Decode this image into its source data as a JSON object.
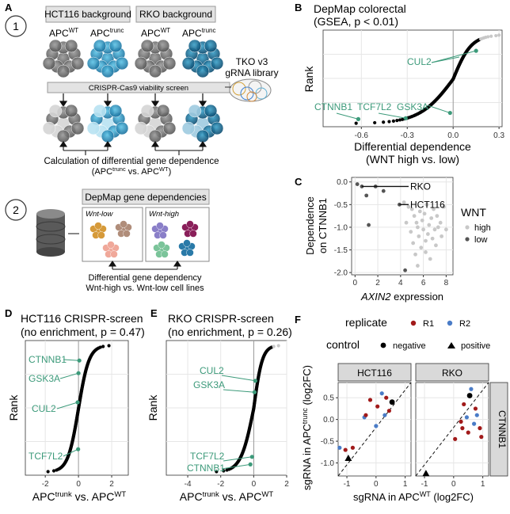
{
  "colors": {
    "teal": "#3c9a7a",
    "dep_high": "#c8c8c8",
    "dep_low": "#555555",
    "rank_points": "#000000",
    "rank_faint": "#c8c8c8",
    "r1": "#a11a1a",
    "r2": "#4a7cc7",
    "strip_bg": "#d9d9d9",
    "panel_bg": "#ffffff",
    "grid": "#e6e6e6"
  },
  "panel_labels": {
    "A": "A",
    "B": "B",
    "C": "C",
    "D": "D",
    "E": "E",
    "F": "F"
  },
  "panelA": {
    "step1": "1",
    "step2": "2",
    "hct_header": "HCT116 background",
    "rko_header": "RKO background",
    "apc_prefix": "APC",
    "sup_wt": "WT",
    "sup_trunc": "trunc",
    "screen_label": "CRISPR-Cas9 viability screen",
    "library_line1": "TKO v3",
    "library_line2": "gRNA library",
    "calc_line1": "Calculation of differential gene dependence",
    "calc_line2_open": "(APC",
    "calc_line2_mid": " vs. APC",
    "calc_line2_close": ")",
    "depmap_header": "DepMap gene dependencies",
    "wnt_low": "Wnt-low",
    "wnt_high": "Wnt-high",
    "diff_line1": "Differential gene dependency",
    "diff_line2": "Wnt-high vs. Wnt-low cell lines",
    "icons": [
      "cell-cluster-icon",
      "database-icon",
      "petri-dish-icon",
      "cell-pellet-icon"
    ]
  },
  "chart_data": [
    {
      "id": "B",
      "type": "scatter",
      "title_line1": "DepMap colorectal",
      "title_line2": "(GSEA, p < 0.01)",
      "xlabel_line1": "Differential dependence",
      "xlabel_line2": "(WNT high vs. low)",
      "ylabel": "Rank",
      "xlim": [
        -0.85,
        0.32
      ],
      "x_ticks": [
        -0.6,
        -0.3,
        0.0,
        0.3
      ],
      "x_tick_labels": [
        "-0.6",
        "-0.3",
        "0.0",
        "0.3"
      ],
      "ylim": [
        0,
        1
      ],
      "vline": 0,
      "grid": true,
      "curve_description": "sigmoid rank of all genes",
      "annotations": [
        {
          "label": "CUL2",
          "x": 0.15,
          "y": 0.82
        },
        {
          "label": "CTNNB1",
          "x": -0.62,
          "y": 0.05
        },
        {
          "label": "TCF7L2",
          "x": -0.31,
          "y": 0.06
        },
        {
          "label": "GSK3A",
          "x": -0.02,
          "y": 0.12
        }
      ]
    },
    {
      "id": "C",
      "type": "scatter",
      "xlabel": "AXIN2",
      "xlabel_suffix": " expression",
      "ylabel_line1": "Dependence",
      "ylabel_line2": "on CTNNB1",
      "xlim": [
        -0.3,
        8.6
      ],
      "ylim": [
        -2.05,
        0.1
      ],
      "x_ticks": [
        0,
        2,
        4,
        6,
        8
      ],
      "y_ticks": [
        0.0,
        -0.5,
        -1.0,
        -1.5,
        -2.0
      ],
      "y_tick_labels": [
        "0.0",
        "-0.5",
        "-1.0",
        "-1.5",
        "-2.0"
      ],
      "legend_title": "WNT",
      "legend_position": "right",
      "series": [
        {
          "name": "high",
          "points": [
            [
              4.3,
              -0.45
            ],
            [
              4.5,
              -0.9
            ],
            [
              4.7,
              -0.55
            ],
            [
              4.9,
              -1.1
            ],
            [
              5.0,
              -0.6
            ],
            [
              5.1,
              -1.35
            ],
            [
              5.2,
              -0.75
            ],
            [
              5.3,
              -1.6
            ],
            [
              5.4,
              -0.9
            ],
            [
              5.5,
              -1.0
            ],
            [
              5.6,
              -1.2
            ],
            [
              5.7,
              -0.65
            ],
            [
              5.8,
              -1.45
            ],
            [
              5.9,
              -0.85
            ],
            [
              6.0,
              -1.05
            ],
            [
              6.1,
              -0.7
            ],
            [
              6.2,
              -1.3
            ],
            [
              6.3,
              -0.5
            ],
            [
              6.4,
              -1.15
            ],
            [
              6.5,
              -0.95
            ],
            [
              6.6,
              -1.7
            ],
            [
              6.7,
              -0.8
            ],
            [
              6.8,
              -1.25
            ],
            [
              6.9,
              -0.6
            ],
            [
              7.0,
              -1.05
            ],
            [
              7.1,
              -1.4
            ],
            [
              7.2,
              -0.75
            ],
            [
              7.3,
              -1.0
            ],
            [
              7.5,
              -0.9
            ],
            [
              7.6,
              -1.2
            ],
            [
              7.8,
              -0.55
            ],
            [
              8.0,
              -1.05
            ],
            [
              5.5,
              -1.85
            ],
            [
              6.2,
              -1.55
            ]
          ]
        },
        {
          "name": "low",
          "points": [
            [
              0.2,
              -0.05
            ],
            [
              0.6,
              -0.1
            ],
            [
              1.0,
              -0.3
            ],
            [
              1.2,
              -0.95
            ],
            [
              1.8,
              -0.1
            ],
            [
              2.5,
              -0.2
            ],
            [
              3.9,
              -0.5
            ],
            [
              4.4,
              -1.95
            ]
          ]
        }
      ],
      "annotations": [
        {
          "label": "RKO",
          "x": 0.6,
          "y": -0.1
        },
        {
          "label": "HCT116",
          "x": 3.9,
          "y": -0.5
        }
      ]
    },
    {
      "id": "D",
      "type": "scatter",
      "title_line1": "HCT116 CRISPR-screen",
      "title_line2": "(no enrichment, p = 0.47)",
      "xlabel_base": "APC",
      "xlabel_sup1": "trunk",
      "xlabel_mid": " vs. APC",
      "xlabel_sup2": "WT",
      "ylabel": "Rank",
      "xlim": [
        -3.2,
        3.0
      ],
      "x_ticks": [
        -2,
        0,
        2
      ],
      "x_tick_labels": [
        "-2",
        "0",
        "2"
      ],
      "vline": 0,
      "annotations": [
        {
          "label": "CTNNB1",
          "x": 0.05,
          "y": 0.88
        },
        {
          "label": "GSK3A",
          "x": 0.0,
          "y": 0.78
        },
        {
          "label": "CUL2",
          "x": -0.05,
          "y": 0.55
        },
        {
          "label": "TCF7L2",
          "x": -0.02,
          "y": 0.18
        }
      ]
    },
    {
      "id": "E",
      "type": "scatter",
      "title_line1": "RKO CRISPR-screen",
      "title_line2": "(no enrichment, p = 0.26)",
      "xlabel_base": "APC",
      "xlabel_sup1": "trunk",
      "xlabel_mid": " vs. APC",
      "xlabel_sup2": "WT",
      "ylabel": "Rank",
      "xlim": [
        -5.3,
        2.0
      ],
      "x_ticks": [
        -4,
        -2,
        0,
        2
      ],
      "x_tick_labels": [
        "-4",
        "-2",
        "0",
        "2"
      ],
      "vline": 0,
      "annotations": [
        {
          "label": "CUL2",
          "x": 0.1,
          "y": 0.72
        },
        {
          "label": "GSK3A",
          "x": 0.05,
          "y": 0.63
        },
        {
          "label": "TCF7L2",
          "x": -0.1,
          "y": 0.12
        },
        {
          "label": "CTNNB1",
          "x": -0.2,
          "y": 0.06
        }
      ]
    },
    {
      "id": "F",
      "type": "scatter",
      "legend_replicate_title": "replicate",
      "legend_replicate": [
        "R1",
        "R2"
      ],
      "legend_control_title": "control",
      "legend_control": [
        "negative",
        "positive"
      ],
      "facets": [
        "HCT116",
        "RKO"
      ],
      "row_strip": "CTNNB1",
      "xlabel_base": "sgRNA in APC",
      "xlabel_sup": "WT",
      "xlabel_suffix": " (log2FC)",
      "ylabel_base": "sgRNA in APC",
      "ylabel_sup": "trunc",
      "ylabel_suffix": " (log2FC)",
      "xlim": [
        -1.3,
        1.2
      ],
      "ylim": [
        -1.3,
        0.85
      ],
      "x_ticks": [
        -1,
        0,
        1
      ],
      "y_ticks": [
        0.5,
        0.0,
        -0.5,
        -1.0
      ],
      "y_tick_labels": [
        "0.5",
        "0.0",
        "-0.5",
        "-1.0"
      ],
      "diagonal": "y = x dashed",
      "points": {
        "HCT116": [
          {
            "x": -1.25,
            "y": -0.65,
            "rep": "R2",
            "ctrl": "none"
          },
          {
            "x": -1.05,
            "y": -0.7,
            "rep": "R1",
            "ctrl": "none"
          },
          {
            "x": -0.8,
            "y": -0.65,
            "rep": "R1",
            "ctrl": "none"
          },
          {
            "x": -0.95,
            "y": -0.9,
            "rep": "",
            "ctrl": "positive"
          },
          {
            "x": -0.4,
            "y": 0.05,
            "rep": "R2",
            "ctrl": "none"
          },
          {
            "x": -0.35,
            "y": 0.1,
            "rep": "R1",
            "ctrl": "none"
          },
          {
            "x": -0.2,
            "y": 0.45,
            "rep": "R1",
            "ctrl": "none"
          },
          {
            "x": 0.0,
            "y": -0.15,
            "rep": "R2",
            "ctrl": "none"
          },
          {
            "x": 0.05,
            "y": 0.3,
            "rep": "R1",
            "ctrl": "none"
          },
          {
            "x": 0.2,
            "y": 0.6,
            "rep": "R2",
            "ctrl": "none"
          },
          {
            "x": 0.3,
            "y": 0.1,
            "rep": "R2",
            "ctrl": "none"
          },
          {
            "x": 0.35,
            "y": 0.5,
            "rep": "R1",
            "ctrl": "none"
          },
          {
            "x": 0.45,
            "y": 0.2,
            "rep": "R1",
            "ctrl": "none"
          },
          {
            "x": 0.55,
            "y": 0.4,
            "rep": "",
            "ctrl": "negative"
          }
        ],
        "RKO": [
          {
            "x": -0.95,
            "y": -1.25,
            "rep": "",
            "ctrl": "positive"
          },
          {
            "x": 0.05,
            "y": -0.45,
            "rep": "R1",
            "ctrl": "none"
          },
          {
            "x": 0.25,
            "y": -0.05,
            "rep": "R1",
            "ctrl": "none"
          },
          {
            "x": 0.35,
            "y": 0.35,
            "rep": "R1",
            "ctrl": "none"
          },
          {
            "x": 0.45,
            "y": 0.05,
            "rep": "R2",
            "ctrl": "none"
          },
          {
            "x": 0.5,
            "y": -0.3,
            "rep": "R1",
            "ctrl": "none"
          },
          {
            "x": 0.55,
            "y": 0.55,
            "rep": "",
            "ctrl": "negative"
          },
          {
            "x": 0.6,
            "y": 0.7,
            "rep": "R2",
            "ctrl": "none"
          },
          {
            "x": 0.7,
            "y": -0.1,
            "rep": "R2",
            "ctrl": "none"
          },
          {
            "x": 0.75,
            "y": 0.25,
            "rep": "R1",
            "ctrl": "none"
          },
          {
            "x": 0.8,
            "y": 0.1,
            "rep": "R2",
            "ctrl": "none"
          },
          {
            "x": 0.9,
            "y": -0.2,
            "rep": "R1",
            "ctrl": "none"
          },
          {
            "x": 0.95,
            "y": -0.4,
            "rep": "R1",
            "ctrl": "none"
          },
          {
            "x": 0.3,
            "y": -0.2,
            "rep": "R1",
            "ctrl": "none"
          }
        ]
      }
    }
  ]
}
